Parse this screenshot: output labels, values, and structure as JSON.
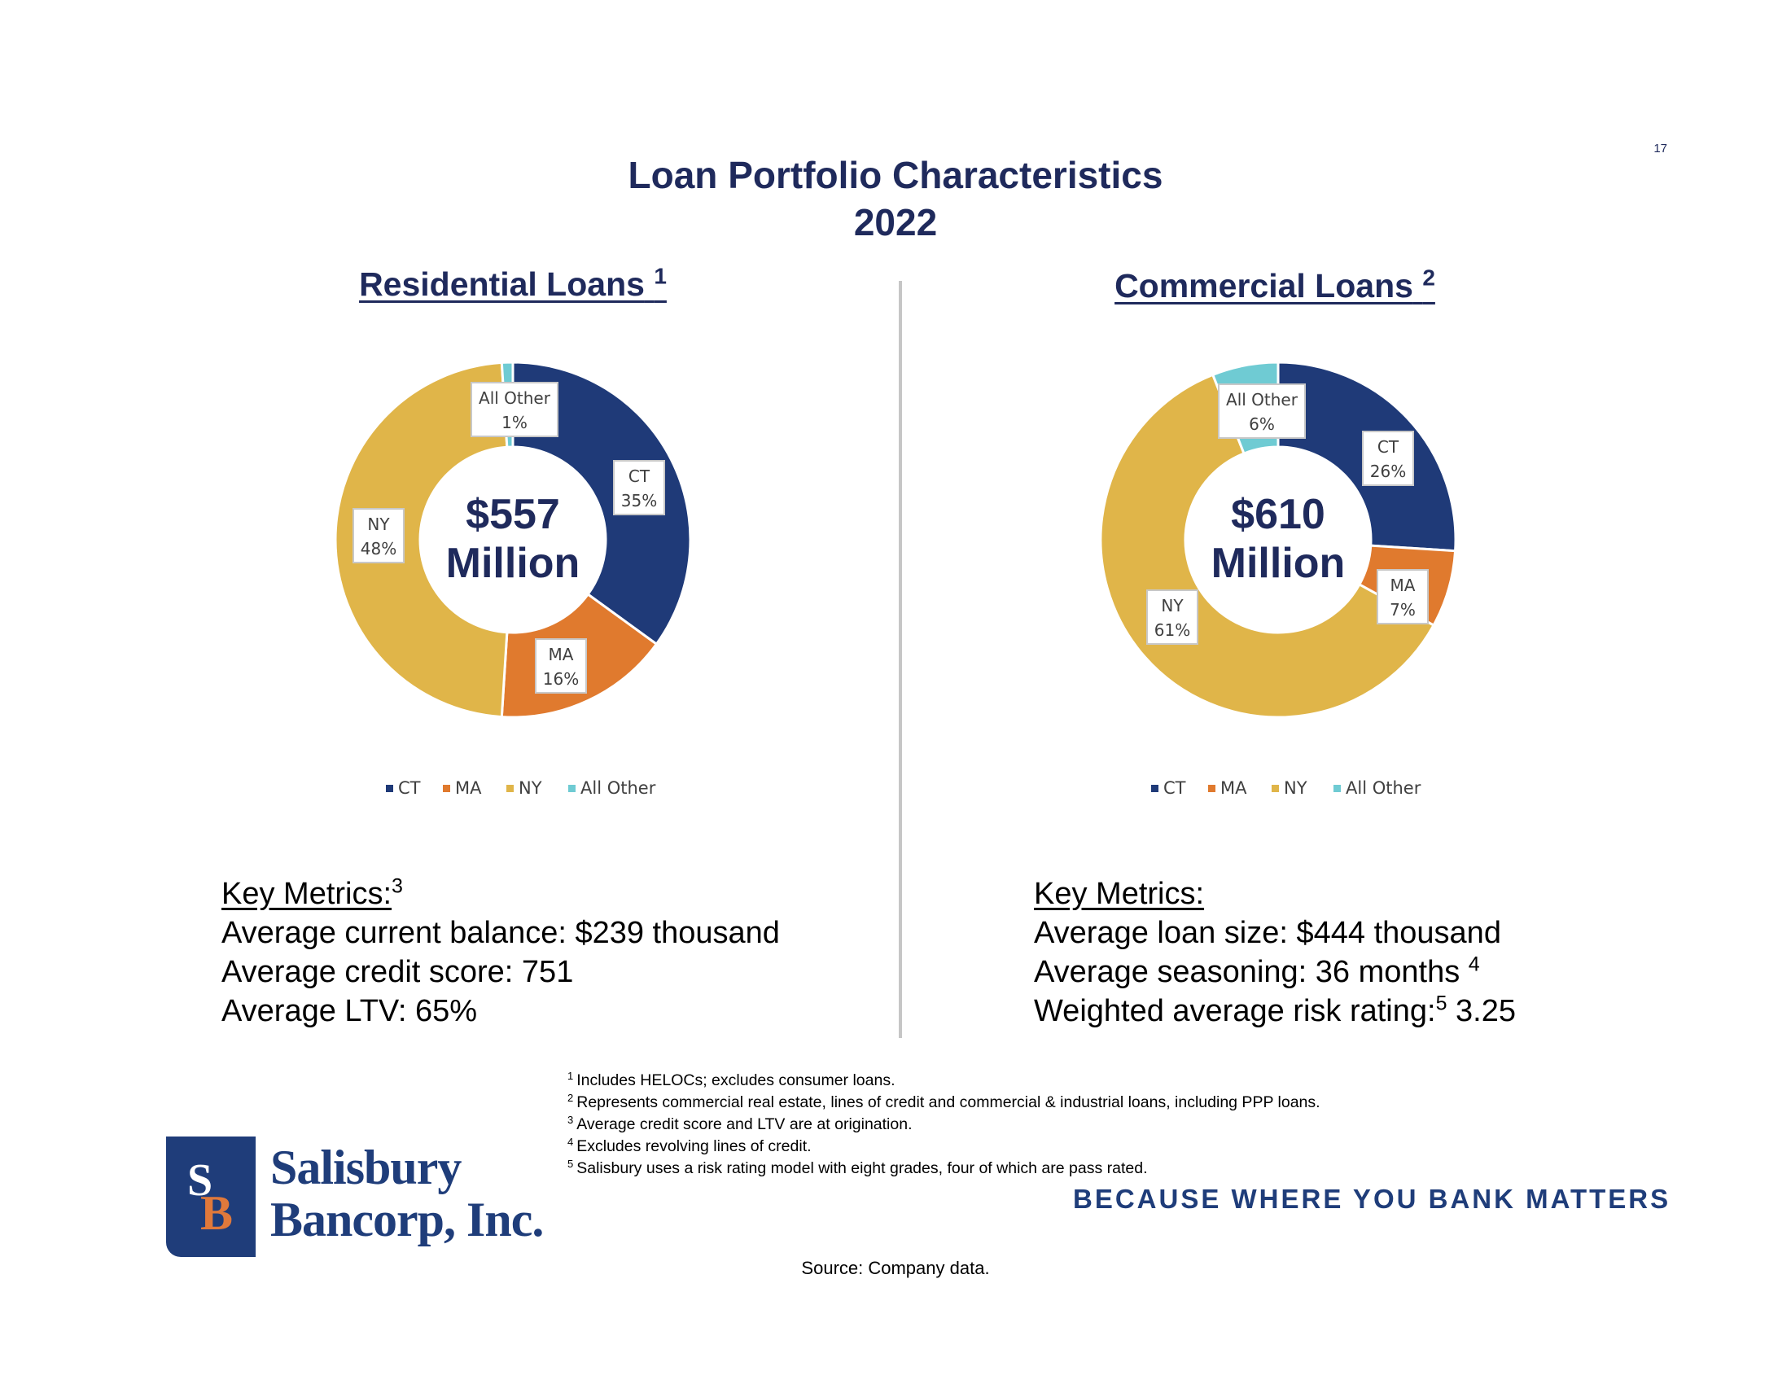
{
  "page_number": "17",
  "title_line1": "Loan Portfolio Characteristics",
  "title_line2": "2022",
  "residential": {
    "heading": "Residential Loans",
    "heading_note": "1",
    "total_line1": "$557",
    "total_line2": "Million",
    "metrics_header": "Key Metrics:",
    "metrics_header_note": "3",
    "metrics": [
      "Average current balance: $239 thousand",
      "Average credit score: 751",
      "Average LTV: 65%"
    ]
  },
  "commercial": {
    "heading": "Commercial Loans",
    "heading_note": "2",
    "total_line1": "$610",
    "total_line2": "Million",
    "metrics_header": "Key Metrics:",
    "metrics": {
      "line1": "Average loan size: $444 thousand",
      "line2_text": "Average seasoning: 36 months",
      "line2_note": "4",
      "line3_pre": "Weighted average risk rating:",
      "line3_note": "5",
      "line3_post": "3.25"
    }
  },
  "colors": {
    "CT": "#1f3a78",
    "MA": "#e07a2e",
    "NY": "#e0b549",
    "All Other": "#6fcbd3",
    "title": "#1f2a5c"
  },
  "chart_data": [
    {
      "type": "pie",
      "title": "Residential Loans",
      "center_label": "$557 Million",
      "categories": [
        "CT",
        "MA",
        "NY",
        "All Other"
      ],
      "values": [
        35,
        16,
        48,
        1
      ],
      "value_labels": [
        "35%",
        "16%",
        "48%",
        "1%"
      ],
      "legend": [
        "CT",
        "MA",
        "NY",
        "All Other"
      ],
      "legend_position": "bottom"
    },
    {
      "type": "pie",
      "title": "Commercial Loans",
      "center_label": "$610 Million",
      "categories": [
        "CT",
        "MA",
        "NY",
        "All Other"
      ],
      "values": [
        26,
        7,
        61,
        6
      ],
      "value_labels": [
        "26%",
        "7%",
        "61%",
        "6%"
      ],
      "legend": [
        "CT",
        "MA",
        "NY",
        "All Other"
      ],
      "legend_position": "bottom"
    }
  ],
  "footnotes": [
    {
      "num": "1",
      "text": "Includes HELOCs; excludes consumer loans."
    },
    {
      "num": "2",
      "text": "Represents commercial real estate, lines of credit and commercial & industrial loans, including PPP loans."
    },
    {
      "num": "3",
      "text": "Average credit score and LTV are at origination."
    },
    {
      "num": "4",
      "text": "Excludes revolving lines of credit."
    },
    {
      "num": "5",
      "text": "Salisbury uses a risk rating model with eight grades, four of which are pass rated."
    }
  ],
  "logo": {
    "mark_s": "S",
    "mark_b": "B",
    "line1": "Salisbury",
    "line2": "Bancorp, Inc."
  },
  "tagline": "BECAUSE WHERE YOU BANK MATTERS",
  "source": "Source: Company data."
}
